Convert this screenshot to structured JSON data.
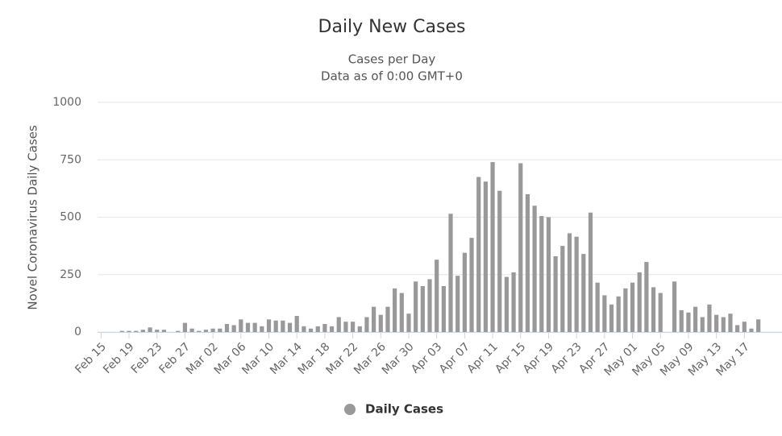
{
  "chart_data": {
    "type": "bar",
    "title": "Daily New Cases",
    "subtitle": [
      "Cases per Day",
      "Data as of 0:00 GMT+0"
    ],
    "y_label": "Novel Coronavirus Daily Cases",
    "categories": [
      "Feb 15",
      null,
      null,
      null,
      "Feb 19",
      null,
      null,
      null,
      "Feb 23",
      null,
      null,
      null,
      "Feb 27",
      null,
      null,
      null,
      "Mar 02",
      null,
      null,
      null,
      "Mar 06",
      null,
      null,
      null,
      "Mar 10",
      null,
      null,
      null,
      "Mar 14",
      null,
      null,
      null,
      "Mar 18",
      null,
      null,
      null,
      "Mar 22",
      null,
      null,
      null,
      "Mar 26",
      null,
      null,
      null,
      "Mar 30",
      null,
      null,
      null,
      "Apr 03",
      null,
      null,
      null,
      "Apr 07",
      null,
      null,
      null,
      "Apr 11",
      null,
      null,
      null,
      "Apr 15",
      null,
      null,
      null,
      "Apr 19",
      null,
      null,
      null,
      "Apr 23",
      null,
      null,
      null,
      "Apr 27",
      null,
      null,
      null,
      "May 01",
      null,
      null,
      null,
      "May 05",
      null,
      null,
      null,
      "May 09",
      null,
      null,
      null,
      "May 13",
      null,
      null,
      null,
      "May 17",
      null,
      null
    ],
    "series": [
      {
        "name": "Daily Cases",
        "color": "#999999",
        "values": [
          0,
          0,
          0,
          5,
          5,
          5,
          10,
          20,
          10,
          10,
          0,
          5,
          40,
          15,
          5,
          10,
          15,
          15,
          35,
          30,
          55,
          40,
          40,
          25,
          55,
          50,
          50,
          40,
          70,
          25,
          15,
          25,
          35,
          25,
          65,
          45,
          45,
          25,
          65,
          110,
          75,
          110,
          190,
          170,
          80,
          220,
          200,
          230,
          315,
          200,
          515,
          245,
          345,
          410,
          675,
          655,
          740,
          615,
          240,
          260,
          735,
          600,
          550,
          505,
          500,
          330,
          375,
          430,
          415,
          340,
          520,
          215,
          160,
          120,
          155,
          190,
          215,
          260,
          305,
          195,
          170,
          0,
          220,
          95,
          85,
          110,
          65,
          120,
          75,
          65,
          80,
          30,
          45,
          15,
          55
        ]
      }
    ],
    "ylim": [
      0,
      1000
    ],
    "yticks": [
      0,
      250,
      500,
      750,
      1000
    ],
    "grid": true
  }
}
